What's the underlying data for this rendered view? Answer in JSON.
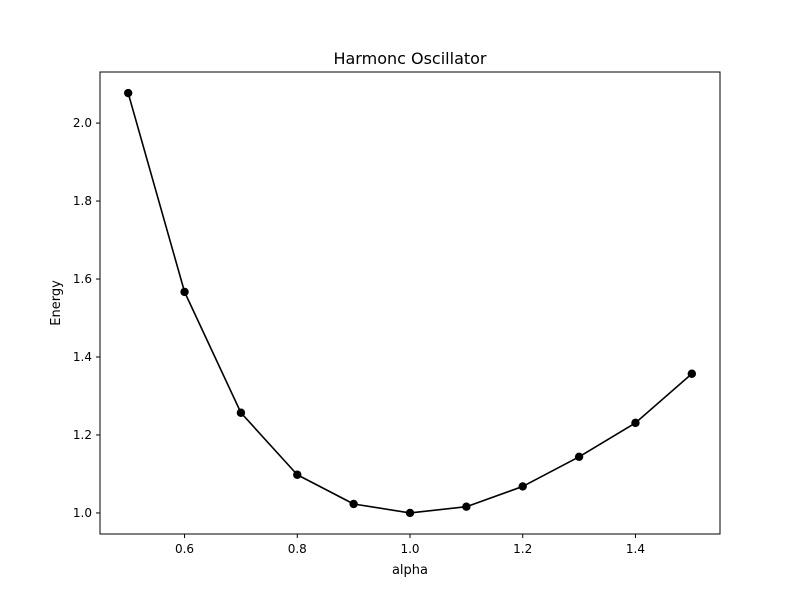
{
  "chart_data": {
    "type": "line",
    "title": "Harmonc Oscillator",
    "xlabel": "alpha",
    "ylabel": "Energy",
    "x": [
      0.5,
      0.6,
      0.7,
      0.8,
      0.9,
      1.0,
      1.1,
      1.2,
      1.3,
      1.4,
      1.5
    ],
    "series": [
      {
        "values": [
          2.077,
          1.567,
          1.257,
          1.098,
          1.023,
          1.0,
          1.016,
          1.068,
          1.144,
          1.231,
          1.357
        ],
        "color": "#000000",
        "marker": "circle"
      }
    ],
    "xlim": [
      0.45,
      1.55
    ],
    "ylim": [
      0.946,
      2.131
    ],
    "xticks": [
      0.6,
      0.8,
      1.0,
      1.2,
      1.4
    ],
    "xtick_labels": [
      "0.6",
      "0.8",
      "1.0",
      "1.2",
      "1.4"
    ],
    "yticks": [
      1.0,
      1.2,
      1.4,
      1.6,
      1.8,
      2.0
    ],
    "ytick_labels": [
      "1.0",
      "1.2",
      "1.4",
      "1.6",
      "1.8",
      "2.0"
    ],
    "grid": false,
    "legend": "none"
  }
}
